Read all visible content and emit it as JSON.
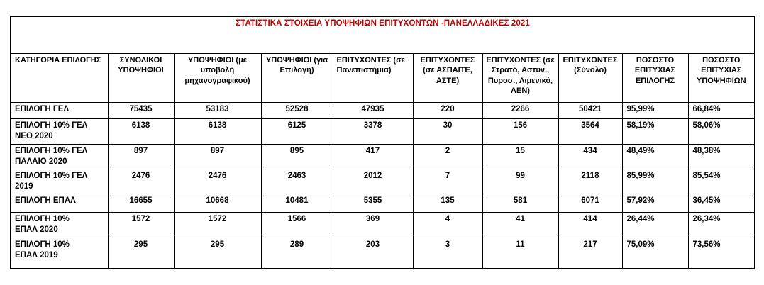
{
  "title": "ΣΤΑΤΙΣΤΙΚΑ ΣΤΟΙΧΕΙΑ ΥΠΟΨΗΦΙΩΝ ΕΠΙΤΥΧΟΝΤΩΝ -ΠΑΝΕΛΛΑΔΙΚΕΣ 2021",
  "colors": {
    "title_text": "#C00000",
    "body_text": "#000000",
    "border": "#000000",
    "background": "#FFFFFF"
  },
  "table": {
    "headers": [
      "ΚΑΤΗΓΟΡΙΑ ΕΠΙΛΟΓΗΣ",
      "ΣΥΝΟΛΙΚΟΙ ΥΠΟΨΗΦΙΟΙ",
      "ΥΠΟΨΗΦΙΟΙ (με υποβολή μηχανογραφικού)",
      "ΥΠΟΨΗΦΙΟΙ (για Επιλογή)",
      "ΕΠΙΤΥΧΟΝΤΕΣ (σε Πανεπιστήμια)",
      "ΕΠΙΤΥΧΟΝΤΕΣ (σε ΑΣΠΑΙΤΕ, ΑΣΤΕ)",
      "ΕΠΙΤΥΧΟΝΤΕΣ (σε Στρατό, Αστυν., Πυροσ., Λιμενικό, ΑΕΝ)",
      "ΕΠΙΤΥΧΟΝΤΕΣ (Σύνολο)",
      "ΠΟΣΟΣΤΟ ΕΠΙΤΥΧΙΑΣ ΕΠΙΛΟΓΗΣ",
      "ΠΟΣΟΣΤΟ ΕΠΙΤΥΧΙΑΣ ΥΠΟΨΗΦΙΩΝ"
    ],
    "rows": [
      [
        "ΕΠΙΛΟΓΗ ΓΕΛ",
        "75435",
        "53183",
        "52528",
        "47935",
        "220",
        "2266",
        "50421",
        "95,99%",
        "66,84%"
      ],
      [
        "ΕΠΙΛΟΓΗ 10% ΓΕΛ ΝΕΟ 2020",
        "6138",
        "6138",
        "6125",
        "3378",
        "30",
        "156",
        "3564",
        "58,19%",
        "58,06%"
      ],
      [
        "ΕΠΙΛΟΓΗ 10% ΓΕΛ ΠΑΛΑΙΟ 2020",
        "897",
        "897",
        "895",
        "417",
        "2",
        "15",
        "434",
        "48,49%",
        "48,38%"
      ],
      [
        "ΕΠΙΛΟΓΗ 10% ΓΕΛ 2019",
        "2476",
        "2476",
        "2463",
        "2012",
        "7",
        "99",
        "2118",
        "85,99%",
        "85,54%"
      ],
      [
        "ΕΠΙΛΟΓΗ ΕΠΑΛ",
        "16655",
        "10668",
        "10481",
        "5355",
        "135",
        "581",
        "6071",
        "57,92%",
        "36,45%"
      ],
      [
        "ΕΠΙΛΟΓΗ 10% ΕΠΑΛ 2020",
        "1572",
        "1572",
        "1566",
        "369",
        "4",
        "41",
        "414",
        "26,44%",
        "26,34%"
      ],
      [
        "ΕΠΙΛΟΓΗ 10% ΕΠΑΛ 2019",
        "295",
        "295",
        "289",
        "203",
        "3",
        "11",
        "217",
        "75,09%",
        "73,56%"
      ]
    ]
  }
}
